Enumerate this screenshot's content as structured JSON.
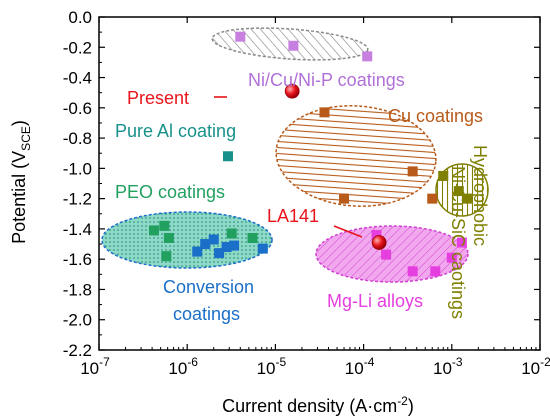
{
  "chart_data": {
    "type": "scatter",
    "xlabel": {
      "main": "Current density (A·cm",
      "sup": "-2",
      "tail": ")"
    },
    "ylabel": {
      "main": "Potential (V",
      "sub": "SCE",
      "tail": ")"
    },
    "x_scale": "log",
    "xlim": [
      1e-07,
      0.01
    ],
    "ylim": [
      -2.2,
      0.0
    ],
    "x_ticks": [
      {
        "value": 1e-07,
        "base": "10",
        "exp": "-7"
      },
      {
        "value": 1e-06,
        "base": "10",
        "exp": "-6"
      },
      {
        "value": 1e-05,
        "base": "10",
        "exp": "-5"
      },
      {
        "value": 0.0001,
        "base": "10",
        "exp": "-4"
      },
      {
        "value": 0.001,
        "base": "10",
        "exp": "-3"
      },
      {
        "value": 0.01,
        "base": "10",
        "exp": "-2"
      }
    ],
    "y_ticks": [
      {
        "value": 0.0,
        "label": "0.0"
      },
      {
        "value": -0.2,
        "label": "-0.2"
      },
      {
        "value": -0.4,
        "label": "-0.4"
      },
      {
        "value": -0.6,
        "label": "-0.6"
      },
      {
        "value": -0.8,
        "label": "-0.8"
      },
      {
        "value": -1.0,
        "label": "-1.0"
      },
      {
        "value": -1.2,
        "label": "-1.2"
      },
      {
        "value": -1.4,
        "label": "-1.4"
      },
      {
        "value": -1.6,
        "label": "-1.6"
      },
      {
        "value": -1.8,
        "label": "-1.8"
      },
      {
        "value": -2.0,
        "label": "-2.0"
      },
      {
        "value": -2.2,
        "label": "-2.2"
      }
    ],
    "grid": false,
    "series": [
      {
        "name": "Ni/Cu/Ni-P coatings",
        "color": "#c77fe0",
        "hatch": "diagonal",
        "points": [
          [
            4e-06,
            -0.13
          ],
          [
            1.6e-05,
            -0.19
          ],
          [
            0.00011,
            -0.26
          ]
        ]
      },
      {
        "name": "Cu coatings",
        "color": "#b85a1a",
        "hatch": "horizontal",
        "points": [
          [
            3.6e-05,
            -0.63
          ],
          [
            6e-05,
            -1.2
          ],
          [
            0.00036,
            -1.02
          ],
          [
            0.0006,
            -1.2
          ]
        ]
      },
      {
        "name": "Hydrophobic Ni-Cu-SiC caotings",
        "color": "#7f7f00",
        "hatch": "vertical",
        "points": [
          [
            0.0008,
            -1.05
          ],
          [
            0.0012,
            -1.15
          ],
          [
            0.0015,
            -1.2
          ]
        ]
      },
      {
        "name": "Pure Al coating",
        "color": "#18918a",
        "points": [
          [
            2.9e-06,
            -0.92
          ]
        ]
      },
      {
        "name": "PEO coatings",
        "color": "#22a060",
        "hatch": "dots",
        "points": [
          [
            4.2e-07,
            -1.41
          ],
          [
            5.5e-07,
            -1.38
          ],
          [
            6.2e-07,
            -1.46
          ],
          [
            5.8e-07,
            -1.58
          ],
          [
            3.2e-06,
            -1.43
          ],
          [
            5.5e-06,
            -1.46
          ]
        ]
      },
      {
        "name": "Conversion coatings",
        "color": "#1a6fc9",
        "points": [
          [
            1.3e-06,
            -1.55
          ],
          [
            1.6e-06,
            -1.5
          ],
          [
            2e-06,
            -1.47
          ],
          [
            2.3e-06,
            -1.56
          ],
          [
            2.8e-06,
            -1.52
          ],
          [
            3.4e-06,
            -1.51
          ],
          [
            7.2e-06,
            -1.53
          ]
        ]
      },
      {
        "name": "Mg-Li alloys",
        "color": "#e63fe0",
        "hatch": "diagonal",
        "points": [
          [
            0.00014,
            -1.44
          ],
          [
            0.00018,
            -1.57
          ],
          [
            0.00036,
            -1.68
          ],
          [
            0.00065,
            -1.68
          ],
          [
            0.001,
            -1.59
          ],
          [
            0.0013,
            -1.49
          ]
        ]
      },
      {
        "name": "Present",
        "color": "#e8141c",
        "marker": "circle",
        "points": [
          [
            1.55e-05,
            -0.49
          ]
        ]
      },
      {
        "name": "LA141",
        "color": "#e8141c",
        "marker": "circle",
        "points": [
          [
            0.00015,
            -1.49
          ]
        ]
      }
    ],
    "annotations": [
      {
        "text": "Ni/Cu/Ni-P coatings",
        "color": "#b070d8"
      },
      {
        "text": "Cu coatings",
        "color": "#b85a1a"
      },
      {
        "text": "Hydrophobic",
        "color": "#7f7f00"
      },
      {
        "text": "Ni-Cu-SiC caotings",
        "color": "#7f7f00"
      },
      {
        "text": "Present",
        "color": "#e8141c"
      },
      {
        "text": "Pure Al coating",
        "color": "#18918a"
      },
      {
        "text": "PEO coatings",
        "color": "#22a060"
      },
      {
        "text": "LA141",
        "color": "#e8141c"
      },
      {
        "text": "Conversion",
        "color": "#1a6fc9"
      },
      {
        "text": "coatings",
        "color": "#1a6fc9"
      },
      {
        "text": "Mg-Li alloys",
        "color": "#e63fe0"
      }
    ]
  }
}
